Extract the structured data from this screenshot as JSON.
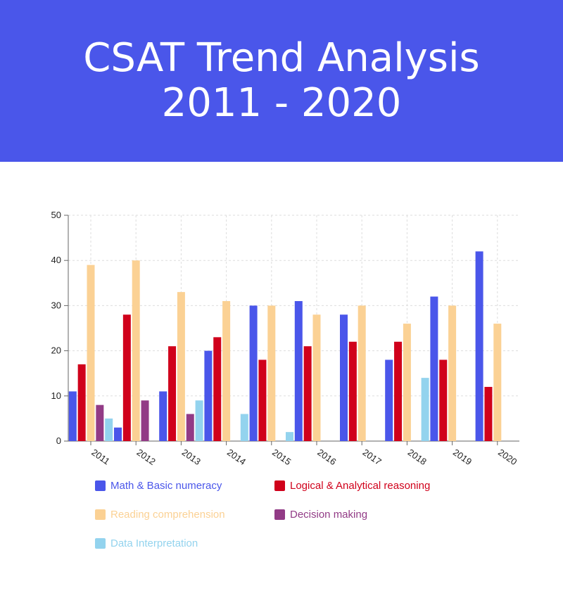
{
  "header": {
    "title_line1": "CSAT Trend Analysis",
    "title_line2": "2011 - 2020",
    "background": "#4a56ea"
  },
  "chart_data": {
    "type": "bar",
    "categories": [
      "2011",
      "2012",
      "2013",
      "2014",
      "2015",
      "2016",
      "2017",
      "2018",
      "2019",
      "2020"
    ],
    "ylim": [
      0,
      50
    ],
    "yticks": [
      0,
      10,
      20,
      30,
      40,
      50
    ],
    "grid": true,
    "legend_position": "bottom",
    "series": [
      {
        "name": "Math & Basic numeracy",
        "color": "#4a56ea",
        "values": [
          11,
          3,
          11,
          20,
          30,
          31,
          28,
          18,
          32,
          42
        ]
      },
      {
        "name": "Logical & Analytical reasoning",
        "color": "#d0011b",
        "values": [
          17,
          28,
          21,
          23,
          18,
          21,
          22,
          22,
          18,
          12
        ]
      },
      {
        "name": "Reading comprehension",
        "color": "#fbd194",
        "values": [
          39,
          40,
          33,
          31,
          30,
          28,
          30,
          26,
          30,
          26
        ]
      },
      {
        "name": "Decision making",
        "color": "#923b86",
        "values": [
          8,
          9,
          6,
          0,
          0,
          0,
          0,
          0,
          0,
          0
        ]
      },
      {
        "name": "Data Interpretation",
        "color": "#93d3ee",
        "values": [
          5,
          0,
          9,
          6,
          2,
          0,
          0,
          14,
          0,
          0
        ]
      }
    ]
  }
}
